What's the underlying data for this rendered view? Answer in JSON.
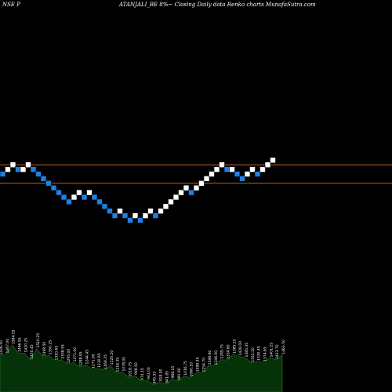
{
  "header": {
    "left": "NSE P",
    "right": "ATANJALI_BE 8%~ Closing Daily data Renko charts MunafaSutra.com"
  },
  "colors": {
    "background": "#000000",
    "up_brick": "#ffffff",
    "down_brick": "#1e7fe6",
    "reference_line": "#c0632a",
    "volume_area": "#06320a",
    "volume_outline": "#1f7a1f"
  },
  "chart_data": {
    "type": "renko",
    "brick_size_percent": 8,
    "reference_lines": [
      2,
      -2
    ],
    "bricks": [
      {
        "dir": "down",
        "level": 0
      },
      {
        "dir": "up",
        "level": 1
      },
      {
        "dir": "up",
        "level": 2
      },
      {
        "dir": "down",
        "level": 1
      },
      {
        "dir": "up",
        "level": 1
      },
      {
        "dir": "up",
        "level": 2
      },
      {
        "dir": "down",
        "level": 1
      },
      {
        "dir": "down",
        "level": 0
      },
      {
        "dir": "down",
        "level": -1
      },
      {
        "dir": "down",
        "level": -2
      },
      {
        "dir": "down",
        "level": -3
      },
      {
        "dir": "down",
        "level": -4
      },
      {
        "dir": "down",
        "level": -5
      },
      {
        "dir": "down",
        "level": -6
      },
      {
        "dir": "up",
        "level": -5
      },
      {
        "dir": "up",
        "level": -4
      },
      {
        "dir": "down",
        "level": -5
      },
      {
        "dir": "up",
        "level": -4
      },
      {
        "dir": "down",
        "level": -5
      },
      {
        "dir": "down",
        "level": -6
      },
      {
        "dir": "down",
        "level": -7
      },
      {
        "dir": "down",
        "level": -8
      },
      {
        "dir": "down",
        "level": -9
      },
      {
        "dir": "up",
        "level": -8
      },
      {
        "dir": "down",
        "level": -9
      },
      {
        "dir": "down",
        "level": -10
      },
      {
        "dir": "up",
        "level": -9
      },
      {
        "dir": "down",
        "level": -10
      },
      {
        "dir": "up",
        "level": -9
      },
      {
        "dir": "up",
        "level": -8
      },
      {
        "dir": "down",
        "level": -9
      },
      {
        "dir": "up",
        "level": -8
      },
      {
        "dir": "up",
        "level": -7
      },
      {
        "dir": "up",
        "level": -6
      },
      {
        "dir": "up",
        "level": -5
      },
      {
        "dir": "up",
        "level": -4
      },
      {
        "dir": "up",
        "level": -3
      },
      {
        "dir": "down",
        "level": -4
      },
      {
        "dir": "up",
        "level": -3
      },
      {
        "dir": "up",
        "level": -2
      },
      {
        "dir": "up",
        "level": -1
      },
      {
        "dir": "up",
        "level": 0
      },
      {
        "dir": "up",
        "level": 1
      },
      {
        "dir": "up",
        "level": 2
      },
      {
        "dir": "down",
        "level": 1
      },
      {
        "dir": "up",
        "level": 1
      },
      {
        "dir": "down",
        "level": 0
      },
      {
        "dir": "down",
        "level": -1
      },
      {
        "dir": "up",
        "level": 0
      },
      {
        "dir": "up",
        "level": 1
      },
      {
        "dir": "down",
        "level": 0
      },
      {
        "dir": "up",
        "level": 1
      },
      {
        "dir": "up",
        "level": 2
      },
      {
        "dir": "up",
        "level": 3
      }
    ],
    "volume": [
      {
        "label": "1426.50",
        "value": 0.62
      },
      {
        "label": "1467.00",
        "value": 0.7
      },
      {
        "label": "1584.55",
        "value": 0.8
      },
      {
        "label": "1466.55",
        "value": 0.72
      },
      {
        "label": "1420.25",
        "value": 0.66
      },
      {
        "label": "1420.45",
        "value": 0.6
      },
      {
        "label": "1510.25",
        "value": 0.74
      },
      {
        "label": "1398.50",
        "value": 0.65
      },
      {
        "label": "1350.25",
        "value": 0.62
      },
      {
        "label": "1310.65",
        "value": 0.58
      },
      {
        "label": "1338.55",
        "value": 0.55
      },
      {
        "label": "1295.00",
        "value": 0.53
      },
      {
        "label": "1271.00",
        "value": 0.5
      },
      {
        "label": "1288.95",
        "value": 0.48
      },
      {
        "label": "1244.45",
        "value": 0.46
      },
      {
        "label": "1271.00",
        "value": 0.44
      },
      {
        "label": "1210.65",
        "value": 0.4
      },
      {
        "label": "1169.25",
        "value": 0.43
      },
      {
        "label": "1120.20",
        "value": 0.45
      },
      {
        "label": "1116.35",
        "value": 0.38
      },
      {
        "label": "1078.00",
        "value": 0.34
      },
      {
        "label": "1018.75",
        "value": 0.3
      },
      {
        "label": "998.50",
        "value": 0.28
      },
      {
        "label": "974.15",
        "value": 0.24
      },
      {
        "label": "941.00",
        "value": 0.2
      },
      {
        "label": "945.55",
        "value": 0.18
      },
      {
        "label": "918.00",
        "value": 0.17
      },
      {
        "label": "941.85",
        "value": 0.19
      },
      {
        "label": "968.15",
        "value": 0.22
      },
      {
        "label": "981.60",
        "value": 0.24
      },
      {
        "label": "1016.75",
        "value": 0.27
      },
      {
        "label": "1060.10",
        "value": 0.3
      },
      {
        "label": "1098.95",
        "value": 0.33
      },
      {
        "label": "1154.70",
        "value": 0.38
      },
      {
        "label": "1198.60",
        "value": 0.45
      },
      {
        "label": "1246.50",
        "value": 0.5
      },
      {
        "label": "1289.75",
        "value": 0.55
      },
      {
        "label": "1334.80",
        "value": 0.6
      },
      {
        "label": "1385.20",
        "value": 0.64
      },
      {
        "label": "1428.00",
        "value": 0.66
      },
      {
        "label": "1385.35",
        "value": 0.58
      },
      {
        "label": "1352.10",
        "value": 0.55
      },
      {
        "label": "1330.45",
        "value": 0.52
      },
      {
        "label": "1374.65",
        "value": 0.56
      },
      {
        "label": "1401.25",
        "value": 0.58
      },
      {
        "label": "1423.70",
        "value": 0.6
      },
      {
        "label": "1463.50",
        "value": 0.63
      }
    ]
  }
}
